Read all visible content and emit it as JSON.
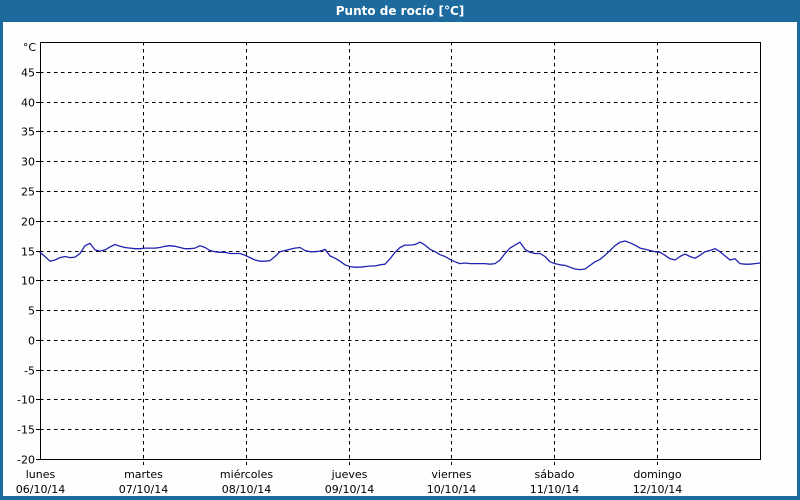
{
  "window": {
    "title": "Punto de rocío [°C]"
  },
  "colors": {
    "frame_blue": "#1d6a9e",
    "title_text": "#ffffff",
    "plot_background": "#fdfefd",
    "grid_and_text": "#000000",
    "series_line": "#2222b2"
  },
  "chart_data": {
    "type": "line",
    "title": "Punto de rocío [°C]",
    "ylabel": "°C",
    "y_unit_label": "°C",
    "ylim": [
      -20,
      50
    ],
    "yticks": [
      45,
      40,
      35,
      30,
      25,
      20,
      15,
      10,
      5,
      0,
      -5,
      -10,
      -15,
      -20
    ],
    "grid": true,
    "legend": "none",
    "x_axis": {
      "range_days": 7,
      "days": [
        {
          "weekday": "lunes",
          "date": "06/10/14"
        },
        {
          "weekday": "martes",
          "date": "07/10/14"
        },
        {
          "weekday": "miércoles",
          "date": "08/10/14"
        },
        {
          "weekday": "jueves",
          "date": "09/10/14"
        },
        {
          "weekday": "viernes",
          "date": "10/10/14"
        },
        {
          "weekday": "sábado",
          "date": "11/10/14"
        },
        {
          "weekday": "domingo",
          "date": "12/10/14"
        }
      ]
    },
    "series": [
      {
        "name": "Punto de rocío",
        "color": "#2222b2",
        "x_spacing": "uniform across full 7-day range",
        "sample_interval_hours": 1.167,
        "values": [
          14.7,
          14.0,
          13.2,
          13.4,
          13.8,
          14.0,
          13.8,
          13.9,
          14.5,
          15.8,
          16.2,
          15.1,
          14.9,
          15.1,
          15.6,
          16.0,
          15.7,
          15.5,
          15.4,
          15.3,
          15.3,
          15.4,
          15.4,
          15.4,
          15.5,
          15.7,
          15.8,
          15.7,
          15.5,
          15.3,
          15.3,
          15.4,
          15.8,
          15.5,
          15.0,
          14.8,
          14.7,
          14.7,
          14.5,
          14.5,
          14.5,
          14.2,
          13.8,
          13.4,
          13.2,
          13.2,
          13.3,
          14.0,
          14.8,
          15.0,
          15.2,
          15.4,
          15.5,
          15.0,
          14.8,
          14.8,
          14.9,
          15.2,
          14.1,
          13.7,
          13.2,
          12.6,
          12.3,
          12.2,
          12.2,
          12.3,
          12.4,
          12.4,
          12.6,
          12.7,
          13.6,
          14.7,
          15.5,
          15.9,
          15.9,
          16.0,
          16.4,
          15.9,
          15.2,
          14.8,
          14.3,
          14.0,
          13.5,
          13.1,
          12.8,
          12.9,
          12.8,
          12.8,
          12.8,
          12.8,
          12.7,
          12.8,
          13.4,
          14.5,
          15.4,
          15.9,
          16.4,
          15.2,
          14.7,
          14.5,
          14.5,
          14.0,
          13.1,
          12.8,
          12.6,
          12.5,
          12.2,
          11.9,
          11.8,
          11.9,
          12.5,
          13.1,
          13.5,
          14.2,
          15.0,
          15.8,
          16.4,
          16.6,
          16.3,
          15.9,
          15.4,
          15.2,
          15.0,
          14.8,
          14.7,
          14.2,
          13.6,
          13.4,
          14.0,
          14.4,
          14.0,
          13.7,
          14.2,
          14.8,
          15.0,
          15.3,
          14.8,
          14.1,
          13.4,
          13.6,
          12.8,
          12.7,
          12.7,
          12.8,
          12.9
        ]
      }
    ]
  }
}
